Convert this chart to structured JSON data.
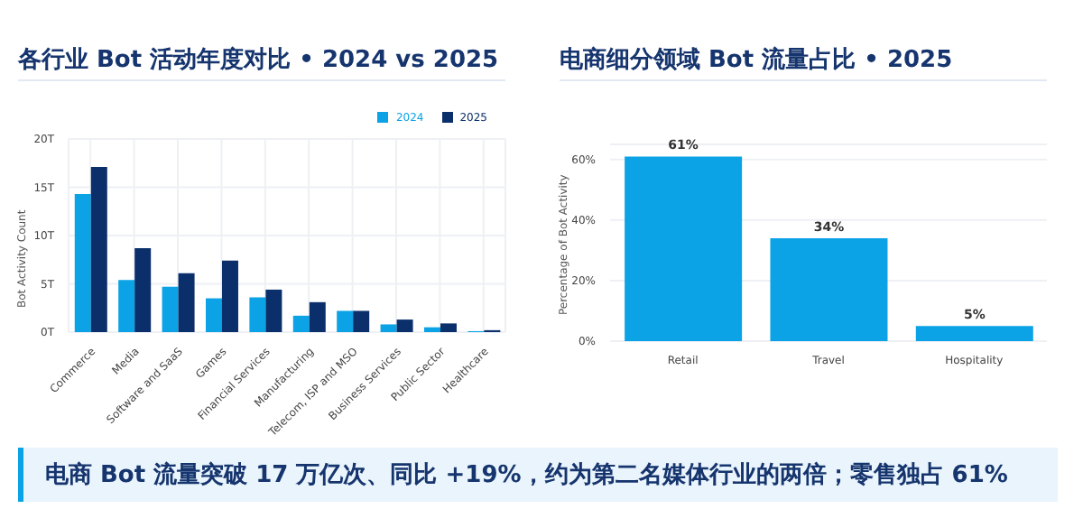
{
  "chart_data": [
    {
      "type": "bar",
      "title": "各行业 Bot 活动年度对比 • 2024 vs 2025",
      "ylabel": "Bot Activity Count",
      "categories": [
        "Commerce",
        "Media",
        "Software and SaaS",
        "Games",
        "Financial Services",
        "Manufacturing",
        "Telecom, ISP and MSO",
        "Business Services",
        "Public Sector",
        "Healthcare"
      ],
      "series": [
        {
          "name": "2024",
          "color": "#0ba2e6",
          "values": [
            14.3,
            5.4,
            4.7,
            3.5,
            3.6,
            1.7,
            2.2,
            0.8,
            0.5,
            0.1
          ]
        },
        {
          "name": "2025",
          "color": "#0b2f6b",
          "values": [
            17.1,
            8.7,
            6.1,
            7.4,
            4.4,
            3.1,
            2.2,
            1.3,
            0.9,
            0.2
          ]
        }
      ],
      "ylim": [
        0,
        20
      ],
      "yticks": [
        {
          "value": 0,
          "label": "0T"
        },
        {
          "value": 5,
          "label": "5T"
        },
        {
          "value": 10,
          "label": "10T"
        },
        {
          "value": 15,
          "label": "15T"
        },
        {
          "value": 20,
          "label": "20T"
        }
      ],
      "grid": true,
      "legend": "top right",
      "annotations": [
        "电商 Bot 流量突破 17 万亿次、同比 +19%，约为第二名媒体行业的两倍；零售独占 61%"
      ]
    },
    {
      "type": "bar",
      "title": "电商细分领域 Bot 流量占比 • 2025",
      "ylabel": "Percentage of Bot Activity",
      "categories": [
        "Retail",
        "Travel",
        "Hospitality"
      ],
      "values": [
        61,
        34,
        5
      ],
      "color": "#0ba2e6",
      "value_labels": [
        "61%",
        "34%",
        "5%"
      ],
      "ylim": [
        0,
        65
      ],
      "yticks": [
        {
          "value": 0,
          "label": "0%"
        },
        {
          "value": 20,
          "label": "20%"
        },
        {
          "value": 40,
          "label": "40%"
        },
        {
          "value": 60,
          "label": "60%"
        }
      ],
      "grid": "y"
    }
  ]
}
